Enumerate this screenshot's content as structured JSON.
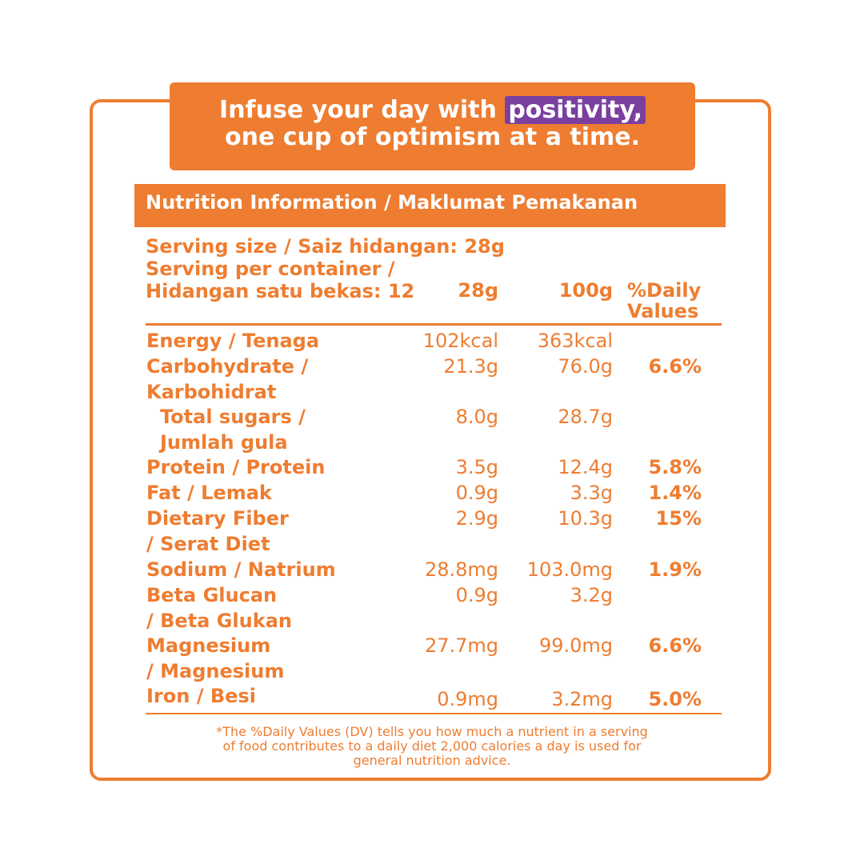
{
  "banner": {
    "line1_prefix": "Infuse your day with ",
    "line1_highlight": "positivity,",
    "line2": "one cup of optimism at a time."
  },
  "header": {
    "title": "Nutrition Information  / Maklumat Pemakanan"
  },
  "serving": {
    "size": "Serving size / Saiz hidangan: 28g",
    "per_container_1": "Serving per container /",
    "per_container_2": "Hidangan satu bekas: 12"
  },
  "columns": {
    "c28": "28g",
    "c100": "100g",
    "dv1": "%Daily",
    "dv2": "Values"
  },
  "rows": [
    {
      "label1": "Energy / Tenaga",
      "label2": "",
      "v28": "102kcal",
      "v100": "363kcal",
      "dv": ""
    },
    {
      "label1": "Carbohydrate /",
      "label2": "Karbohidrat",
      "v28": "21.3g",
      "v100": "76.0g",
      "dv": "6.6%"
    },
    {
      "label1": "Total sugars /",
      "label2": "Jumlah gula",
      "v28": "8.0g",
      "v100": "28.7g",
      "dv": ""
    },
    {
      "label1": "Protein / Protein",
      "label2": "",
      "v28": "3.5g",
      "v100": "12.4g",
      "dv": "5.8%"
    },
    {
      "label1": "Fat / Lemak",
      "label2": "",
      "v28": "0.9g",
      "v100": "3.3g",
      "dv": "1.4%"
    },
    {
      "label1": "Dietary Fiber",
      "label2": "/ Serat Diet",
      "v28": "2.9g",
      "v100": "10.3g",
      "dv": "15%"
    },
    {
      "label1": "Sodium / Natrium",
      "label2": "",
      "v28": "28.8mg",
      "v100": "103.0mg",
      "dv": "1.9%"
    },
    {
      "label1": "Beta Glucan",
      "label2": "/ Beta Glukan",
      "v28": "0.9g",
      "v100": "3.2g",
      "dv": ""
    },
    {
      "label1": "Magnesium",
      "label2": "/ Magnesium",
      "v28": "27.7mg",
      "v100": "99.0mg",
      "dv": "6.6%"
    },
    {
      "label1": "Iron / Besi",
      "label2": "",
      "v28": "0.9mg",
      "v100": "3.2mg",
      "dv": "5.0%"
    }
  ],
  "footnote": {
    "line1": "*The %Daily Values (DV) tells you how much a nutrient in a serving",
    "line2": "of food contributes to a daily diet 2,000 calories a day is used for",
    "line3": "general nutrition advice."
  },
  "colors": {
    "accent": "#ee7d31",
    "highlight": "#7b3fa0"
  }
}
